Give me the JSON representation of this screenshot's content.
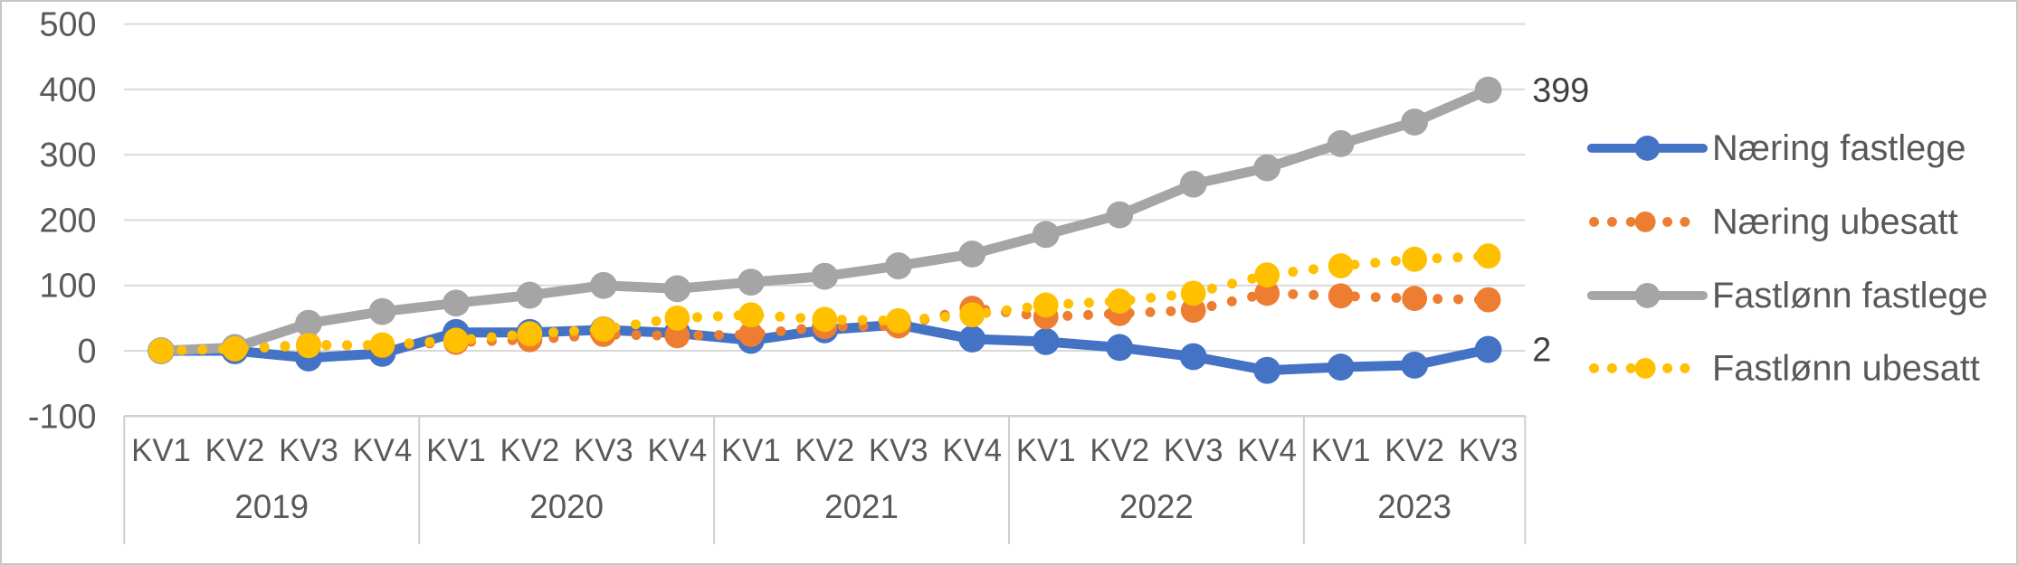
{
  "chart_data": {
    "type": "line",
    "title": "",
    "y_axis": {
      "ticks": [
        500,
        400,
        300,
        200,
        100,
        0,
        -100
      ],
      "min": -100,
      "max": 500,
      "grid": true
    },
    "x_axis": {
      "groups": [
        {
          "label": "2019",
          "quarters": [
            "KV1",
            "KV2",
            "KV3",
            "KV4"
          ]
        },
        {
          "label": "2020",
          "quarters": [
            "KV1",
            "KV2",
            "KV3",
            "KV4"
          ]
        },
        {
          "label": "2021",
          "quarters": [
            "KV1",
            "KV2",
            "KV3",
            "KV4"
          ]
        },
        {
          "label": "2022",
          "quarters": [
            "KV1",
            "KV2",
            "KV3",
            "KV4"
          ]
        },
        {
          "label": "2023",
          "quarters": [
            "KV1",
            "KV2",
            "KV3"
          ]
        }
      ]
    },
    "series": [
      {
        "name": "Næring fastlege",
        "color": "#4472C4",
        "style": "solid",
        "values": [
          0,
          0,
          -11,
          -4,
          28,
          28,
          32,
          27,
          16,
          32,
          40,
          18,
          14,
          5,
          -9,
          -30,
          -25,
          -22,
          2
        ]
      },
      {
        "name": "Næring ubesatt",
        "color": "#ED7D31",
        "style": "dotted",
        "values": [
          0,
          3,
          9,
          8,
          13,
          17,
          25,
          23,
          25,
          37,
          38,
          65,
          52,
          57,
          62,
          88,
          84,
          80,
          78
        ]
      },
      {
        "name": "Fastlønn fastlege",
        "color": "#A5A5A5",
        "style": "solid",
        "values": [
          0,
          5,
          42,
          60,
          73,
          85,
          100,
          95,
          105,
          114,
          130,
          148,
          178,
          208,
          255,
          280,
          317,
          350,
          399
        ]
      },
      {
        "name": "Fastlønn ubesatt",
        "color": "#FFC000",
        "style": "dotted",
        "values": [
          0,
          3,
          8,
          9,
          16,
          26,
          33,
          50,
          55,
          48,
          46,
          55,
          70,
          76,
          88,
          116,
          130,
          140,
          145
        ]
      }
    ],
    "end_labels": [
      {
        "series_index": 2,
        "text": "399",
        "value": 399
      },
      {
        "series_index": 0,
        "text": "2",
        "value": 2
      }
    ],
    "legend": {
      "position": "right"
    },
    "colors": {
      "gridline": "#D9D9D9",
      "axis_line": "#CFCFCF",
      "tick_text": "#595959",
      "end_label_text": "#3F3F3F",
      "legend_text": "#595959",
      "background": "#FFFFFF"
    }
  }
}
